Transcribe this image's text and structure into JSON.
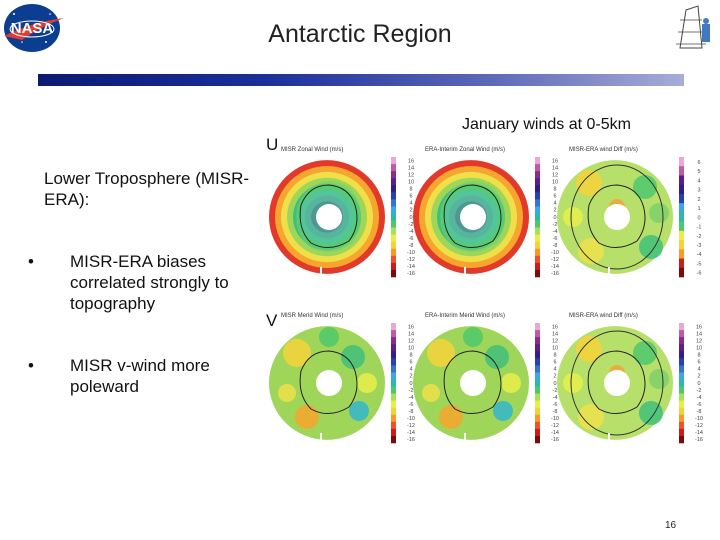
{
  "slide": {
    "title": "Antarctic Region",
    "caption": "January winds at 0-5km",
    "u_label": "U",
    "v_label": "V",
    "heading": "Lower Troposphere (MISR-ERA):",
    "bullets": [
      "MISR-ERA biases correlated strongly to topography",
      "MISR v-wind more poleward"
    ],
    "page_number": "16",
    "logo": "NASA",
    "colors": {
      "title_bar_start": "#0b1a73",
      "title_bar_end": "#a8acd8",
      "nasa_blue": "#0b3d91",
      "nasa_red": "#e03c31"
    }
  },
  "panels": [
    {
      "title": "MISR Zonal Wind (m/s)",
      "scale": [
        "16",
        "14",
        "12",
        "10",
        "8",
        "6",
        "4",
        "2",
        "0",
        "-2",
        "-4",
        "-6",
        "-8",
        "-10",
        "-12",
        "-14",
        "-16"
      ]
    },
    {
      "title": "ERA-Interim Zonal Wind (m/s)",
      "scale": [
        "16",
        "14",
        "12",
        "10",
        "8",
        "6",
        "4",
        "2",
        "0",
        "-2",
        "-4",
        "-6",
        "-8",
        "-10",
        "-12",
        "-14",
        "-16"
      ]
    },
    {
      "title": "MISR-ERA wind Diff (m/s)",
      "scale": [
        "6",
        "5",
        "4",
        "3",
        "2",
        "1",
        "0",
        "-1",
        "-2",
        "-3",
        "-4",
        "-5",
        "-6"
      ]
    },
    {
      "title": "MISR Merid Wind (m/s)",
      "scale": [
        "16",
        "14",
        "12",
        "10",
        "8",
        "6",
        "4",
        "2",
        "0",
        "-2",
        "-4",
        "-6",
        "-8",
        "-10",
        "-12",
        "-14",
        "-16"
      ]
    },
    {
      "title": "ERA-Interim Merid Wind (m/s)",
      "scale": [
        "16",
        "14",
        "12",
        "10",
        "8",
        "6",
        "4",
        "2",
        "0",
        "-2",
        "-4",
        "-6",
        "-8",
        "-10",
        "-12",
        "-14",
        "-16"
      ]
    },
    {
      "title": "MISR-ERA wind Diff (m/s)",
      "scale": [
        "16",
        "14",
        "12",
        "10",
        "8",
        "6",
        "4",
        "2",
        "0",
        "-2",
        "-4",
        "-6",
        "-8",
        "-10",
        "-12",
        "-14",
        "-16"
      ]
    }
  ]
}
